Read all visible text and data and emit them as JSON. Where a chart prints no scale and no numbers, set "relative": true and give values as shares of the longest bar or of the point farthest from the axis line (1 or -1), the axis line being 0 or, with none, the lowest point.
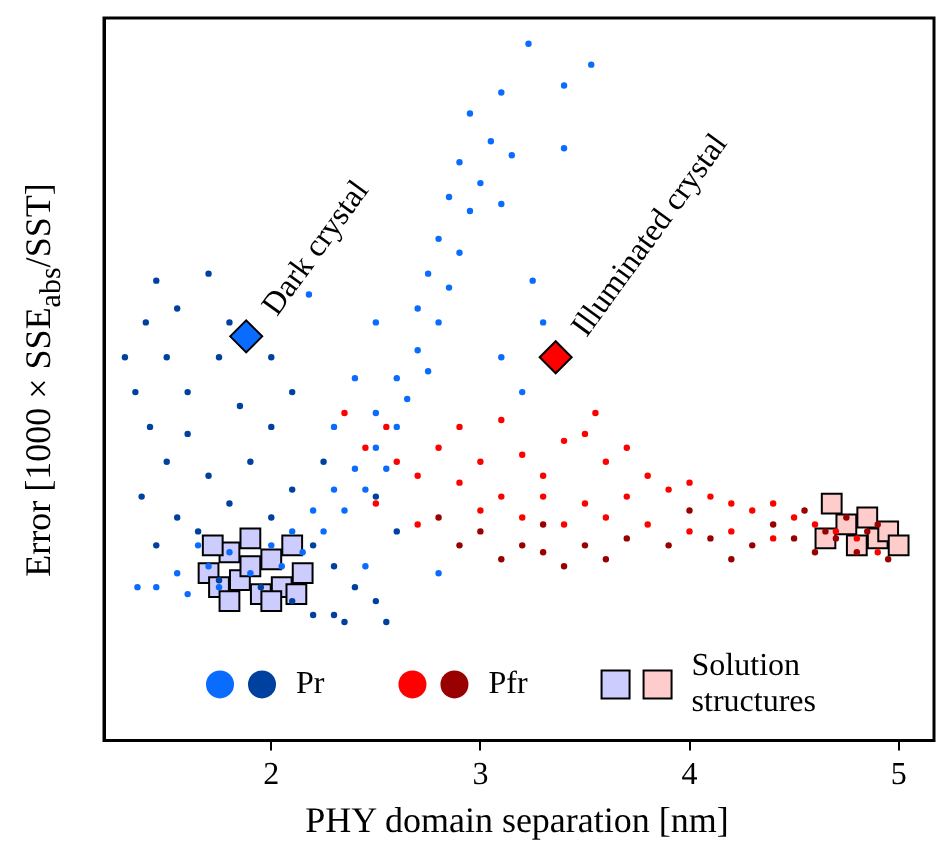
{
  "chart_data": {
    "type": "scatter",
    "xlabel": "PHY domain separation [nm]",
    "ylabel": "Error [1000 × SSE$_{abs}$/SST]",
    "relative": true,
    "xlim": [
      1.2,
      5.15
    ],
    "xticks": [
      2,
      3,
      4,
      5
    ],
    "grid": false,
    "legend": "bottom",
    "tick_labels": "x",
    "series": [
      {
        "color": "#0a6cff",
        "marker": "circle",
        "x": [
          1.36,
          1.45,
          1.55,
          1.6,
          1.7,
          1.75,
          1.8,
          1.9,
          2.0,
          2.05,
          2.1,
          2.15,
          1.65,
          2.2,
          2.25,
          2.3,
          2.35,
          2.4,
          2.45,
          2.5,
          2.55,
          2.5,
          2.6,
          2.6,
          2.65,
          2.7,
          2.75,
          2.7,
          2.8,
          2.75,
          2.85,
          2.8,
          2.9,
          2.85,
          2.95,
          2.9,
          3.0,
          3.05,
          3.1,
          3.15,
          2.95,
          3.1,
          3.23,
          3.4,
          3.53,
          3.4,
          3.25,
          3.3,
          2.45,
          2.8,
          2.3,
          2.5,
          3.1,
          3.2,
          2.4,
          2.18
        ],
        "values": [
          0.22,
          0.22,
          0.24,
          0.21,
          0.25,
          0.22,
          0.27,
          0.24,
          0.28,
          0.25,
          0.3,
          0.27,
          0.28,
          0.33,
          0.3,
          0.36,
          0.33,
          0.39,
          0.36,
          0.42,
          0.39,
          0.47,
          0.45,
          0.52,
          0.49,
          0.56,
          0.53,
          0.62,
          0.6,
          0.67,
          0.65,
          0.72,
          0.7,
          0.78,
          0.76,
          0.83,
          0.8,
          0.86,
          0.77,
          0.84,
          0.9,
          0.93,
          1.0,
          0.94,
          0.97,
          0.85,
          0.66,
          0.6,
          0.25,
          0.24,
          0.45,
          0.6,
          0.55,
          0.5,
          0.52,
          0.64
        ]
      },
      {
        "name": "Pr",
        "color": "#00409e",
        "marker": "circle",
        "x": [
          1.35,
          1.4,
          1.45,
          1.5,
          1.55,
          1.6,
          1.7,
          1.75,
          1.42,
          1.5,
          1.6,
          1.7,
          1.38,
          1.55,
          1.65,
          1.8,
          1.9,
          2.0,
          2.1,
          1.85,
          2.0,
          2.1,
          2.2,
          2.3,
          2.4,
          2.5,
          2.35,
          2.2,
          2.55,
          2.1,
          1.95,
          1.75,
          2.6,
          2.5,
          2.25,
          1.8,
          2.0,
          1.3,
          1.45,
          2.3
        ],
        "values": [
          0.5,
          0.6,
          0.66,
          0.55,
          0.62,
          0.5,
          0.67,
          0.55,
          0.45,
          0.4,
          0.44,
          0.38,
          0.35,
          0.32,
          0.3,
          0.34,
          0.4,
          0.45,
          0.5,
          0.48,
          0.32,
          0.36,
          0.28,
          0.25,
          0.22,
          0.2,
          0.17,
          0.18,
          0.17,
          0.2,
          0.22,
          0.23,
          0.3,
          0.35,
          0.4,
          0.6,
          0.55,
          0.55,
          0.28,
          0.18
        ]
      },
      {
        "color": "#ff0000",
        "marker": "circle",
        "x": [
          2.35,
          2.45,
          2.55,
          2.6,
          2.7,
          2.8,
          2.9,
          3.0,
          3.1,
          3.2,
          3.3,
          3.4,
          3.5,
          3.6,
          3.7,
          3.8,
          3.9,
          4.0,
          4.1,
          4.2,
          4.3,
          4.4,
          4.5,
          4.6,
          4.7,
          4.8,
          4.9,
          3.0,
          3.2,
          3.4,
          3.6,
          3.8,
          4.0,
          4.2,
          2.7,
          2.5,
          3.3,
          3.7,
          3.5,
          4.4,
          2.9,
          3.1,
          3.55
        ],
        "values": [
          0.47,
          0.42,
          0.45,
          0.4,
          0.38,
          0.42,
          0.37,
          0.4,
          0.35,
          0.41,
          0.38,
          0.43,
          0.44,
          0.4,
          0.42,
          0.38,
          0.36,
          0.37,
          0.35,
          0.34,
          0.33,
          0.34,
          0.32,
          0.31,
          0.3,
          0.29,
          0.27,
          0.33,
          0.32,
          0.31,
          0.32,
          0.31,
          0.3,
          0.3,
          0.31,
          0.34,
          0.35,
          0.35,
          0.34,
          0.29,
          0.45,
          0.46,
          0.47
        ]
      },
      {
        "name": "Pfr",
        "color": "#990000",
        "marker": "circle",
        "x": [
          2.9,
          3.0,
          3.1,
          3.2,
          3.3,
          3.5,
          3.7,
          3.9,
          4.1,
          4.3,
          4.4,
          4.5,
          4.55,
          4.6,
          4.7,
          4.75,
          4.8,
          4.85,
          4.95,
          4.0,
          3.6,
          4.2,
          3.4,
          4.65,
          4.9,
          2.8,
          3.3
        ],
        "values": [
          0.28,
          0.3,
          0.26,
          0.28,
          0.27,
          0.28,
          0.29,
          0.28,
          0.29,
          0.28,
          0.31,
          0.29,
          0.33,
          0.27,
          0.29,
          0.32,
          0.27,
          0.3,
          0.26,
          0.33,
          0.26,
          0.26,
          0.25,
          0.3,
          0.31,
          0.32,
          0.31
        ]
      },
      {
        "color": "#ccccff",
        "marker": "square",
        "x": [
          1.7,
          1.75,
          1.8,
          1.85,
          1.9,
          1.95,
          2.0,
          2.05,
          2.1,
          2.15,
          1.8,
          1.9,
          2.0,
          1.72,
          2.12
        ],
        "values": [
          0.24,
          0.22,
          0.27,
          0.23,
          0.25,
          0.21,
          0.26,
          0.22,
          0.28,
          0.24,
          0.2,
          0.29,
          0.2,
          0.28,
          0.21
        ]
      },
      {
        "name": "Solution structures",
        "color": "#ffcccc",
        "marker": "square",
        "x": [
          4.65,
          4.75,
          4.8,
          4.85,
          4.9,
          4.95,
          5.0,
          4.68
        ],
        "values": [
          0.29,
          0.31,
          0.28,
          0.32,
          0.29,
          0.3,
          0.28,
          0.34
        ]
      },
      {
        "color": "#0a6cff",
        "marker": "diamond",
        "x": [
          1.88
        ],
        "values": [
          0.58
        ]
      },
      {
        "color": "#ff0000",
        "marker": "diamond",
        "x": [
          3.36
        ],
        "values": [
          0.55
        ]
      }
    ],
    "annotations": [
      {
        "text": "Dark crystal",
        "x": 1.88,
        "y": 0.58
      },
      {
        "text": "Illuminated crystal",
        "x": 3.36,
        "y": 0.55
      }
    ]
  }
}
